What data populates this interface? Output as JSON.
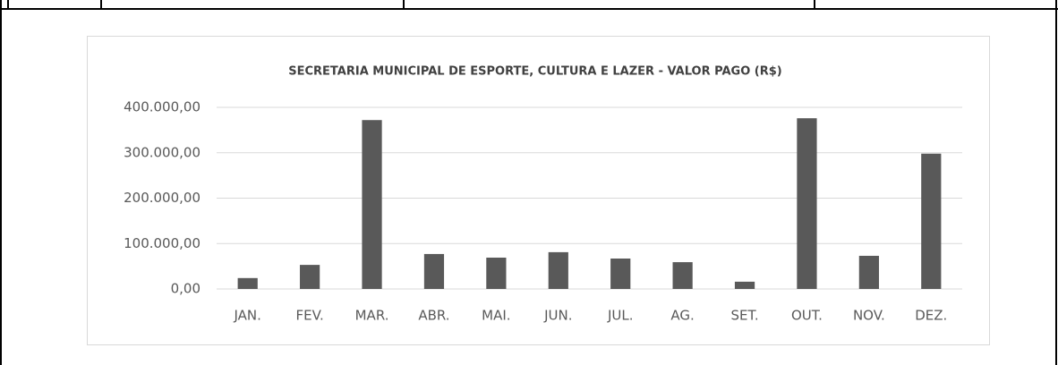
{
  "chart_data": {
    "type": "bar",
    "title": "SECRETARIA MUNICIPAL DE ESPORTE, CULTURA E LAZER - VALOR PAGO (R$)",
    "categories": [
      "JAN.",
      "FEV.",
      "MAR.",
      "ABR.",
      "MAI.",
      "JUN.",
      "JUL.",
      "AG.",
      "SET.",
      "OUT.",
      "NOV.",
      "DEZ."
    ],
    "values": [
      24000,
      53000,
      372000,
      77000,
      69000,
      81000,
      67000,
      59000,
      16000,
      376000,
      73000,
      298000
    ],
    "color": "#595959",
    "ylim": [
      0,
      400000
    ],
    "yticks": [
      {
        "value": 0,
        "label": "0,00"
      },
      {
        "value": 100000,
        "label": "100.000,00"
      },
      {
        "value": 200000,
        "label": "200.000,00"
      },
      {
        "value": 300000,
        "label": "300.000,00"
      },
      {
        "value": 400000,
        "label": "400.000,00"
      }
    ],
    "grid": true
  }
}
